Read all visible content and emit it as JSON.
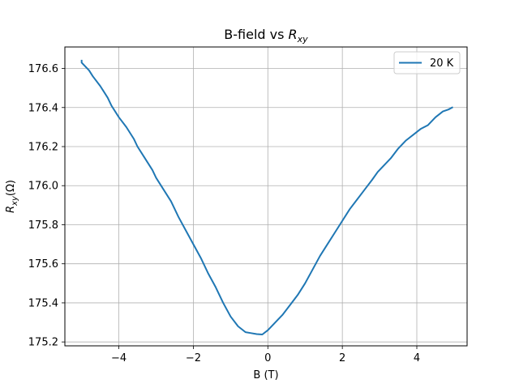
{
  "chart_data": {
    "type": "line",
    "title": "B-field vs R_xy",
    "title_parts": {
      "prefix": "B-field vs ",
      "var_main": "R",
      "var_sub": "xy"
    },
    "xlabel": "B (T)",
    "ylabel_parts": {
      "main": "R",
      "sub": "xy",
      "suffix": "(Ω)"
    },
    "xlim": [
      -5.45,
      5.35
    ],
    "ylim": [
      175.18,
      176.71
    ],
    "grid": true,
    "legend_position": "top-right",
    "x_ticks": [
      -4,
      -2,
      0,
      2,
      4
    ],
    "x_tick_labels": [
      "−4",
      "−2",
      "0",
      "2",
      "4"
    ],
    "y_ticks": [
      175.2,
      175.4,
      175.6,
      175.8,
      176.0,
      176.2,
      176.4,
      176.6
    ],
    "y_tick_labels": [
      "175.2",
      "175.4",
      "175.6",
      "175.8",
      "176.0",
      "176.2",
      "176.4",
      "176.6"
    ],
    "series": [
      {
        "name": "20 K",
        "color": "#1f77b4",
        "x": [
          -5.0,
          -5.0,
          -4.95,
          -4.8,
          -4.7,
          -4.5,
          -4.3,
          -4.2,
          -4.0,
          -3.8,
          -3.6,
          -3.5,
          -3.3,
          -3.1,
          -3.0,
          -2.8,
          -2.6,
          -2.4,
          -2.2,
          -2.0,
          -1.8,
          -1.6,
          -1.4,
          -1.2,
          -1.0,
          -0.8,
          -0.6,
          -0.45,
          -0.3,
          -0.15,
          0.0,
          0.2,
          0.4,
          0.6,
          0.8,
          1.0,
          1.2,
          1.4,
          1.6,
          1.8,
          2.0,
          2.2,
          2.4,
          2.6,
          2.8,
          2.95,
          3.1,
          3.3,
          3.5,
          3.7,
          3.9,
          4.1,
          4.3,
          4.5,
          4.7,
          4.85,
          4.95
        ],
        "y": [
          176.64,
          176.63,
          176.62,
          176.59,
          176.56,
          176.51,
          176.45,
          176.41,
          176.35,
          176.3,
          176.24,
          176.2,
          176.14,
          176.08,
          176.04,
          175.98,
          175.92,
          175.84,
          175.77,
          175.7,
          175.63,
          175.55,
          175.48,
          175.4,
          175.33,
          175.28,
          175.25,
          175.245,
          175.24,
          175.238,
          175.26,
          175.3,
          175.34,
          175.39,
          175.44,
          175.5,
          175.57,
          175.64,
          175.7,
          175.76,
          175.82,
          175.88,
          175.93,
          175.98,
          176.03,
          176.07,
          176.1,
          176.14,
          176.19,
          176.23,
          176.26,
          176.29,
          176.31,
          176.35,
          176.38,
          176.39,
          176.4
        ]
      }
    ]
  }
}
